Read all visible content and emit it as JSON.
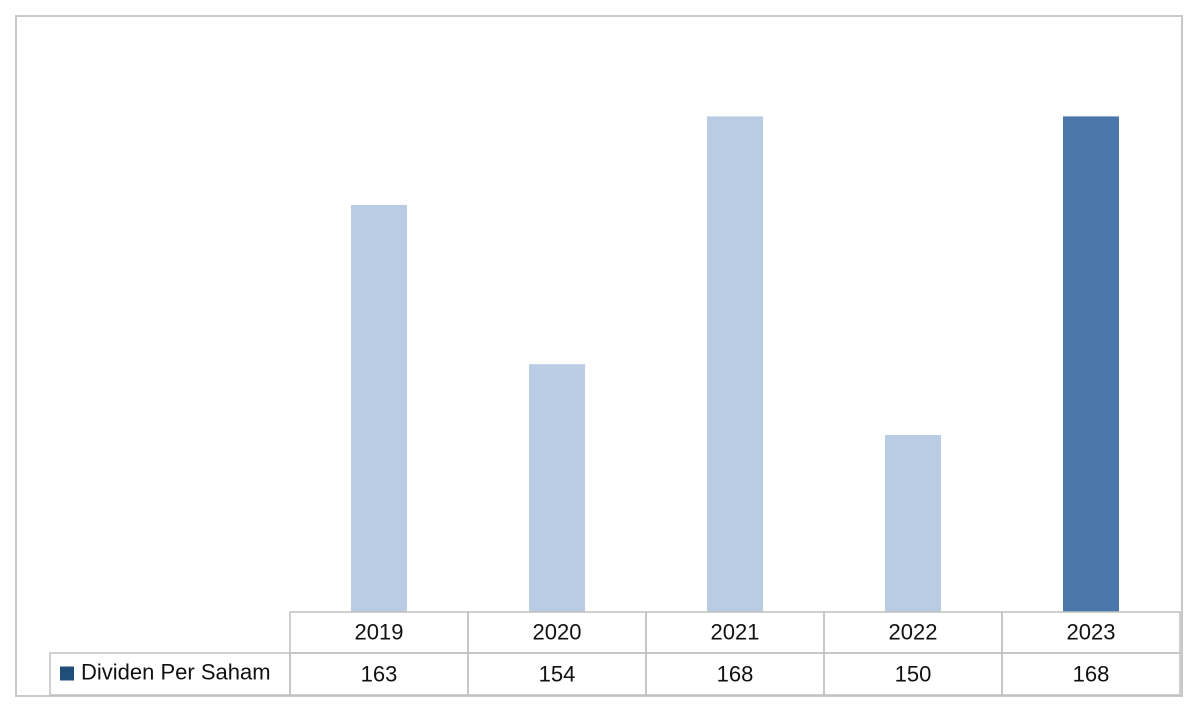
{
  "chart_data": {
    "type": "bar",
    "categories": [
      "2019",
      "2020",
      "2021",
      "2022",
      "2023"
    ],
    "series": [
      {
        "name": "Dividen Per Saham",
        "color": "#1f4e79",
        "bar_colors": [
          "#b9cce4",
          "#b9cce4",
          "#b9cce4",
          "#b9cce4",
          "#4a76aa"
        ],
        "values": [
          163,
          154,
          168,
          150,
          168
        ]
      }
    ],
    "ylim": [
      140,
      170
    ],
    "data_table": true
  }
}
